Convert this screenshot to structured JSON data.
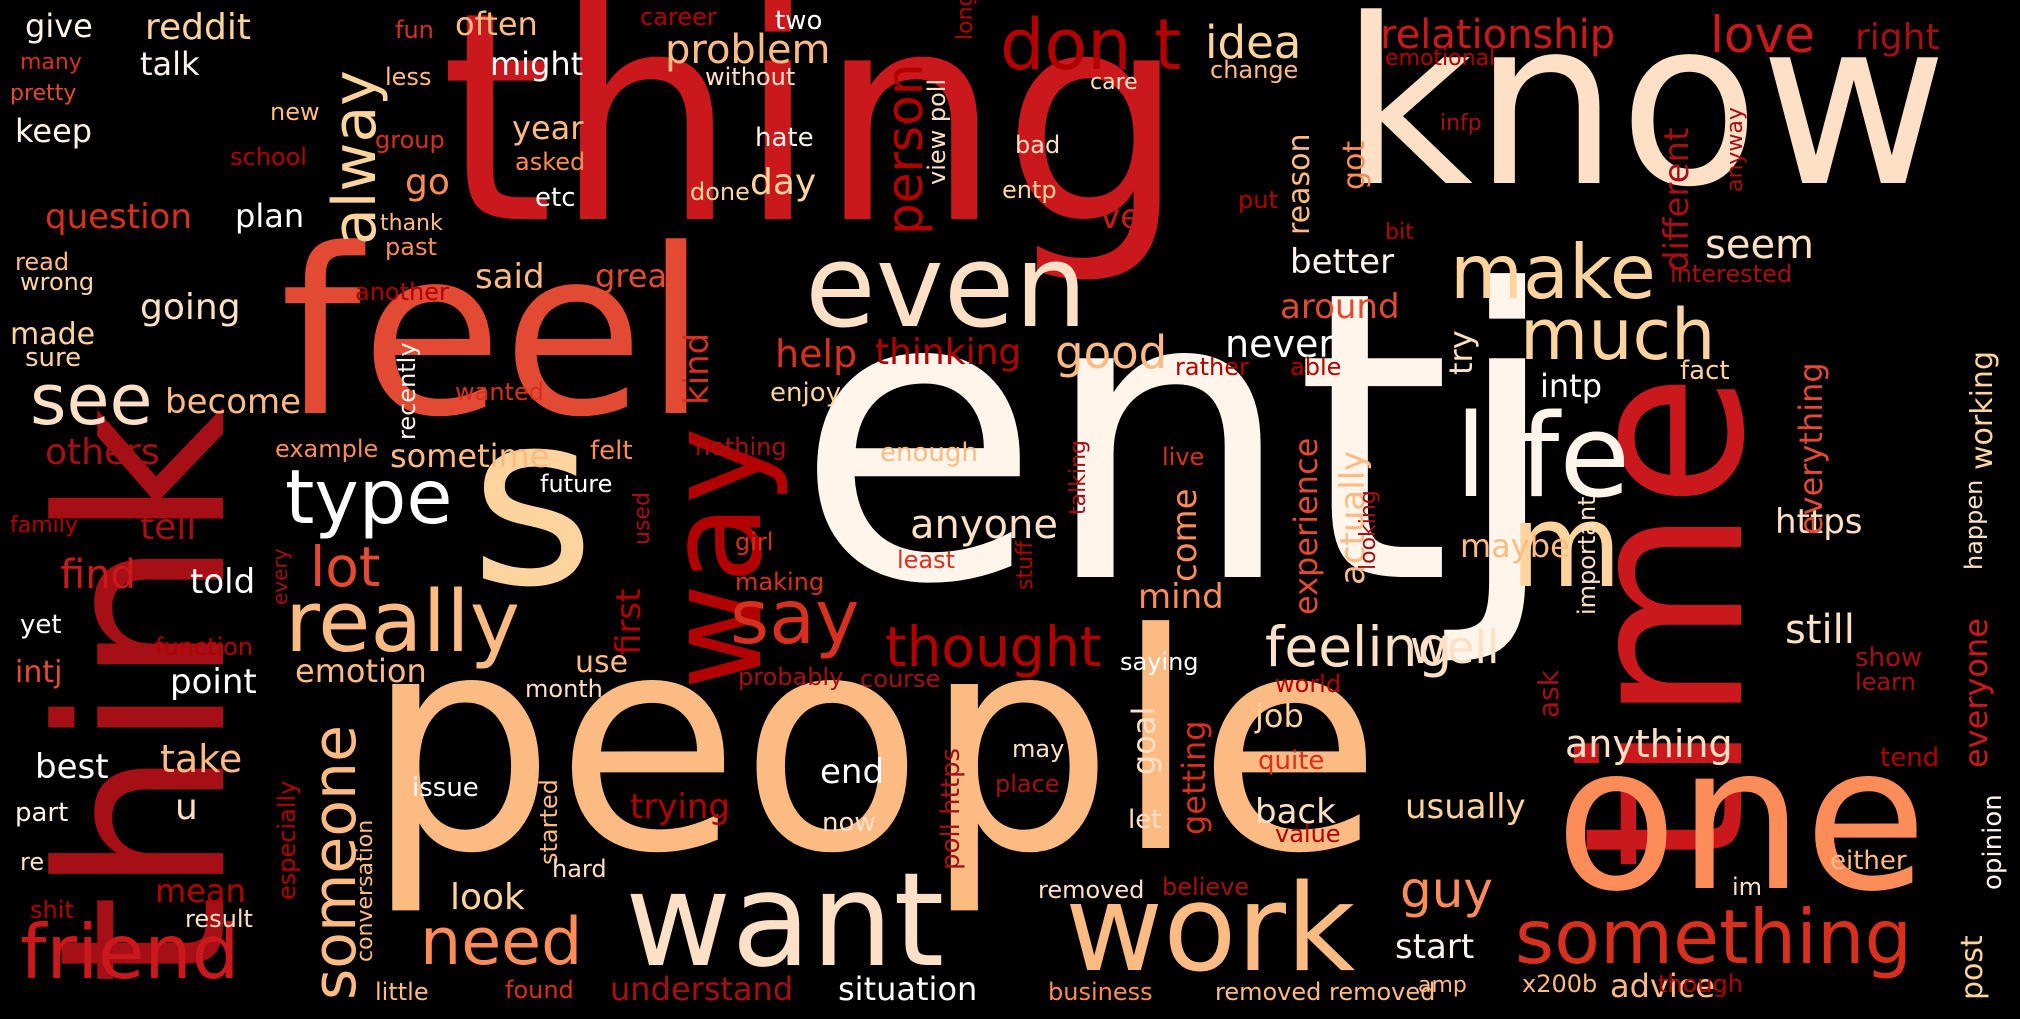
{
  "palette": {
    "background": "#000000",
    "dark_red": "#a50f15",
    "red": "#cb181d",
    "red_orange": "#e34a33",
    "salmon": "#fc9272",
    "peach": "#fdbb84",
    "light_peach": "#fdd49e",
    "cream": "#fff5eb",
    "white": "#ffffff"
  },
  "words": [
    {
      "text": "entj",
      "color": "#fff5eb"
    },
    {
      "text": "people",
      "color": "#fdbb84"
    },
    {
      "text": "thing",
      "color": "#cb181d"
    },
    {
      "text": "know",
      "color": "#fde0c5"
    },
    {
      "text": "think",
      "color": "#a50f15"
    },
    {
      "text": "feel",
      "color": "#e34a33"
    },
    {
      "text": "time",
      "color": "#cb181d"
    },
    {
      "text": "one",
      "color": "#fc8d59"
    },
    {
      "text": "s",
      "color": "#fdd49e"
    },
    {
      "text": "want",
      "color": "#fde0c5"
    },
    {
      "text": "work",
      "color": "#fdbb84"
    },
    {
      "text": "way",
      "color": "#b30000"
    },
    {
      "text": "even",
      "color": "#fde0c5"
    },
    {
      "text": "life",
      "color": "#fff5eb"
    },
    {
      "text": "m",
      "color": "#fdd49e"
    },
    {
      "text": "really",
      "color": "#fdbb84"
    },
    {
      "text": "friend",
      "color": "#cb181d"
    },
    {
      "text": "something",
      "color": "#d7301f"
    },
    {
      "text": "make",
      "color": "#fdd49e"
    },
    {
      "text": "much",
      "color": "#fdd49e"
    },
    {
      "text": "say",
      "color": "#d7301f"
    },
    {
      "text": "type",
      "color": "#ffffff"
    },
    {
      "text": "see",
      "color": "#fde0c5"
    },
    {
      "text": "need",
      "color": "#fc8d59"
    },
    {
      "text": "don t",
      "color": "#b30000"
    },
    {
      "text": "feeling",
      "color": "#fde0c5"
    },
    {
      "text": "someone",
      "color": "#fdbb84"
    },
    {
      "text": "thought",
      "color": "#b30000"
    },
    {
      "text": "alway",
      "color": "#fdd49e"
    },
    {
      "text": "lot",
      "color": "#e34a33"
    },
    {
      "text": "guy",
      "color": "#fc8d59"
    },
    {
      "text": "relationship",
      "color": "#cb181d"
    },
    {
      "text": "love",
      "color": "#cb181d"
    },
    {
      "text": "person",
      "color": "#b30000"
    },
    {
      "text": "idea",
      "color": "#fdd49e"
    },
    {
      "text": "problem",
      "color": "#fdbb84"
    },
    {
      "text": "good",
      "color": "#fdbb84"
    },
    {
      "text": "help",
      "color": "#d7301f"
    },
    {
      "text": "thinking",
      "color": "#b30000"
    },
    {
      "text": "never",
      "color": "#ffffff"
    },
    {
      "text": "anyone",
      "color": "#fde0c5"
    },
    {
      "text": "well",
      "color": "#fde0c5"
    },
    {
      "text": "still",
      "color": "#fde0c5"
    },
    {
      "text": "seem",
      "color": "#fde0c5"
    },
    {
      "text": "better",
      "color": "#fff5eb"
    },
    {
      "text": "around",
      "color": "#e34a33"
    },
    {
      "text": "anything",
      "color": "#fde0c5"
    },
    {
      "text": "usually",
      "color": "#fdd49e"
    },
    {
      "text": "back",
      "color": "#fde0c5"
    },
    {
      "text": "job",
      "color": "#fdd49e"
    },
    {
      "text": "maybe",
      "color": "#fdbb84"
    },
    {
      "text": "https",
      "color": "#fde0c5"
    },
    {
      "text": "intp",
      "color": "#ffffff"
    },
    {
      "text": "question",
      "color": "#d7301f"
    },
    {
      "text": "plan",
      "color": "#ffffff"
    },
    {
      "text": "going",
      "color": "#fde0c5"
    },
    {
      "text": "become",
      "color": "#fdbb84"
    },
    {
      "text": "others",
      "color": "#a50f15"
    },
    {
      "text": "tell",
      "color": "#a50f15"
    },
    {
      "text": "find",
      "color": "#cb181d"
    },
    {
      "text": "told",
      "color": "#ffffff"
    },
    {
      "text": "emotion",
      "color": "#fdbb84"
    },
    {
      "text": "point",
      "color": "#ffffff"
    },
    {
      "text": "take",
      "color": "#fdbb84"
    },
    {
      "text": "u",
      "color": "#fde0c5"
    },
    {
      "text": "best",
      "color": "#ffffff"
    },
    {
      "text": "mean",
      "color": "#b30000"
    },
    {
      "text": "look",
      "color": "#fdd49e"
    },
    {
      "text": "trying",
      "color": "#b30000"
    },
    {
      "text": "end",
      "color": "#ffffff"
    },
    {
      "text": "understand",
      "color": "#a50f15"
    },
    {
      "text": "situation",
      "color": "#ffffff"
    },
    {
      "text": "start",
      "color": "#fff5eb"
    },
    {
      "text": "advice",
      "color": "#fdbb84"
    },
    {
      "text": "said",
      "color": "#fdbb84"
    },
    {
      "text": "great",
      "color": "#e34a33"
    },
    {
      "text": "sometime",
      "color": "#fdbb84"
    },
    {
      "text": "day",
      "color": "#fdd49e"
    },
    {
      "text": "year",
      "color": "#fdbb84"
    },
    {
      "text": "etc",
      "color": "#ffffff"
    },
    {
      "text": "go",
      "color": "#fc8d59"
    },
    {
      "text": "often",
      "color": "#fdbb84"
    },
    {
      "text": "might",
      "color": "#ffffff"
    },
    {
      "text": "give",
      "color": "#fff5eb"
    },
    {
      "text": "reddit",
      "color": "#fdd49e"
    },
    {
      "text": "talk",
      "color": "#fff5eb"
    },
    {
      "text": "keep",
      "color": "#fff5eb"
    },
    {
      "text": "many",
      "color": "#d7301f"
    },
    {
      "text": "pretty",
      "color": "#e34a33"
    },
    {
      "text": "read",
      "color": "#fdbb84"
    },
    {
      "text": "wrong",
      "color": "#fdd49e"
    },
    {
      "text": "made",
      "color": "#fdd49e"
    },
    {
      "text": "sure",
      "color": "#fdd49e"
    },
    {
      "text": "family",
      "color": "#b30000"
    },
    {
      "text": "yet",
      "color": "#ffffff"
    },
    {
      "text": "intj",
      "color": "#e34a33"
    },
    {
      "text": "part",
      "color": "#fff5eb"
    },
    {
      "text": "re",
      "color": "#fde0c5"
    },
    {
      "text": "shit",
      "color": "#b30000"
    },
    {
      "text": "fun",
      "color": "#d7301f"
    },
    {
      "text": "less",
      "color": "#fdbb84"
    },
    {
      "text": "new",
      "color": "#fdbb84"
    },
    {
      "text": "group",
      "color": "#d7301f"
    },
    {
      "text": "school",
      "color": "#b30000"
    },
    {
      "text": "thank",
      "color": "#fdbb84"
    },
    {
      "text": "past",
      "color": "#fc8d59"
    },
    {
      "text": "another",
      "color": "#b30000"
    },
    {
      "text": "wanted",
      "color": "#d7301f"
    },
    {
      "text": "example",
      "color": "#fc8d59"
    },
    {
      "text": "future",
      "color": "#ffffff"
    },
    {
      "text": "felt",
      "color": "#fc8d59"
    },
    {
      "text": "function",
      "color": "#b30000"
    },
    {
      "text": "career",
      "color": "#b30000"
    },
    {
      "text": "two",
      "color": "#ffffff"
    },
    {
      "text": "without",
      "color": "#fde0c5"
    },
    {
      "text": "hate",
      "color": "#fff5eb"
    },
    {
      "text": "done",
      "color": "#fdd49e"
    },
    {
      "text": "asked",
      "color": "#fc8d59"
    },
    {
      "text": "long",
      "color": "#b30000"
    },
    {
      "text": "view poll",
      "color": "#fde0c5"
    },
    {
      "text": "care",
      "color": "#fde0c5"
    },
    {
      "text": "change",
      "color": "#fdbb84"
    },
    {
      "text": "bad",
      "color": "#fde0c5"
    },
    {
      "text": "entp",
      "color": "#fdd49e"
    },
    {
      "text": "ve",
      "color": "#cb181d"
    },
    {
      "text": "emotional",
      "color": "#b30000"
    },
    {
      "text": "right",
      "color": "#a50f15"
    },
    {
      "text": "infp",
      "color": "#a50f15"
    },
    {
      "text": "reason",
      "color": "#fdbb84"
    },
    {
      "text": "got",
      "color": "#fc8d59"
    },
    {
      "text": "different",
      "color": "#a50f15"
    },
    {
      "text": "anyway",
      "color": "#a50f15"
    },
    {
      "text": "put",
      "color": "#b30000"
    },
    {
      "text": "bit",
      "color": "#b30000"
    },
    {
      "text": "interested",
      "color": "#a50f15"
    },
    {
      "text": "enjoy",
      "color": "#fdd49e"
    },
    {
      "text": "kind",
      "color": "#d7301f"
    },
    {
      "text": "recently",
      "color": "#fff5eb"
    },
    {
      "text": "nothing",
      "color": "#a50f15"
    },
    {
      "text": "enough",
      "color": "#fdbb84"
    },
    {
      "text": "rather",
      "color": "#b30000"
    },
    {
      "text": "able",
      "color": "#b30000"
    },
    {
      "text": "try",
      "color": "#fde0c5"
    },
    {
      "text": "fact",
      "color": "#fdd49e"
    },
    {
      "text": "working",
      "color": "#fdd49e"
    },
    {
      "text": "everything",
      "color": "#e34a33"
    },
    {
      "text": "happen",
      "color": "#fde0c5"
    },
    {
      "text": "everyone",
      "color": "#cb181d"
    },
    {
      "text": "post",
      "color": "#fdd49e"
    },
    {
      "text": "opinion",
      "color": "#fff5eb"
    },
    {
      "text": "show",
      "color": "#a50f15"
    },
    {
      "text": "learn",
      "color": "#a50f15"
    },
    {
      "text": "tend",
      "color": "#b30000"
    },
    {
      "text": "either",
      "color": "#fdbb84"
    },
    {
      "text": "im",
      "color": "#fde0c5"
    },
    {
      "text": "though",
      "color": "#b30000"
    },
    {
      "text": "x200b",
      "color": "#fdbb84"
    },
    {
      "text": "amp",
      "color": "#fdbb84"
    },
    {
      "text": "removed removed",
      "color": "#fdbb84"
    },
    {
      "text": "business",
      "color": "#fc8d59"
    },
    {
      "text": "removed",
      "color": "#fde0c5"
    },
    {
      "text": "believe",
      "color": "#a50f15"
    },
    {
      "text": "value",
      "color": "#b30000"
    },
    {
      "text": "quite",
      "color": "#d7301f"
    },
    {
      "text": "let",
      "color": "#fde0c5"
    },
    {
      "text": "goal",
      "color": "#fde0c5"
    },
    {
      "text": "getting",
      "color": "#d7301f"
    },
    {
      "text": "may",
      "color": "#fde0c5"
    },
    {
      "text": "place",
      "color": "#a50f15"
    },
    {
      "text": "now",
      "color": "#fde0c5"
    },
    {
      "text": "poll https",
      "color": "#a50f15"
    },
    {
      "text": "issue",
      "color": "#ffffff"
    },
    {
      "text": "started",
      "color": "#fdbb84"
    },
    {
      "text": "hard",
      "color": "#fde0c5"
    },
    {
      "text": "conversation",
      "color": "#fdbb84"
    },
    {
      "text": "especially",
      "color": "#b30000"
    },
    {
      "text": "little",
      "color": "#fdbb84"
    },
    {
      "text": "found",
      "color": "#d7301f"
    },
    {
      "text": "result",
      "color": "#fde0c5"
    },
    {
      "text": "month",
      "color": "#fde0c5"
    },
    {
      "text": "probably",
      "color": "#a50f15"
    },
    {
      "text": "course",
      "color": "#a50f15"
    },
    {
      "text": "saying",
      "color": "#ffffff"
    },
    {
      "text": "world",
      "color": "#b30000"
    },
    {
      "text": "ask",
      "color": "#a50f15"
    },
    {
      "text": "important",
      "color": "#fde0c5"
    },
    {
      "text": "experience",
      "color": "#e34a33"
    },
    {
      "text": "actually",
      "color": "#fdbb84"
    },
    {
      "text": "looking",
      "color": "#a50f15"
    },
    {
      "text": "come",
      "color": "#fc8d59"
    },
    {
      "text": "mind",
      "color": "#fc8d59"
    },
    {
      "text": "live",
      "color": "#d7301f"
    },
    {
      "text": "talking",
      "color": "#a50f15"
    },
    {
      "text": "stuff",
      "color": "#b30000"
    },
    {
      "text": "least",
      "color": "#d7301f"
    },
    {
      "text": "girl",
      "color": "#d7301f"
    },
    {
      "text": "making",
      "color": "#d7301f"
    },
    {
      "text": "first",
      "color": "#b30000"
    },
    {
      "text": "used",
      "color": "#a50f15"
    },
    {
      "text": "use",
      "color": "#fdbb84"
    },
    {
      "text": "every",
      "color": "#a50f15"
    }
  ]
}
